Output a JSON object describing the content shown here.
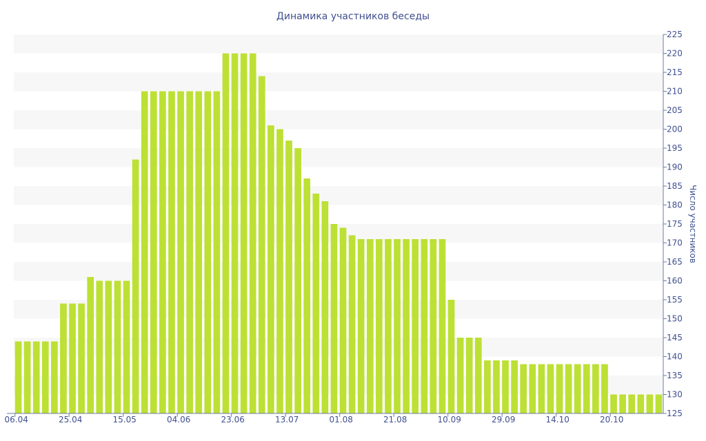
{
  "chart_data": {
    "type": "bar",
    "title": "Динамика участников беседы",
    "xlabel": "",
    "ylabel": "Число участников",
    "ylim": [
      125,
      225
    ],
    "ytick_step": 5,
    "y_axis_side": "right",
    "grid": "alternating horizontal bands",
    "legend": "none",
    "bar_color": "#bde034",
    "band_color": "#f7f7f7",
    "text_color": "#3f4f8f",
    "x_tick_labels": [
      "06.04",
      "25.04",
      "15.05",
      "04.06",
      "23.06",
      "13.07",
      "01.08",
      "21.08",
      "10.09",
      "29.09",
      "14.10",
      "20.10"
    ],
    "x_tick_bar_index": [
      0,
      6,
      12,
      18,
      24,
      30,
      36,
      42,
      48,
      54,
      60,
      66
    ],
    "values": [
      144,
      144,
      144,
      144,
      144,
      154,
      154,
      154,
      161,
      160,
      160,
      160,
      160,
      192,
      210,
      210,
      210,
      210,
      210,
      210,
      210,
      210,
      210,
      220,
      220,
      220,
      220,
      214,
      201,
      200,
      197,
      195,
      187,
      183,
      181,
      175,
      174,
      172,
      171,
      171,
      171,
      171,
      171,
      171,
      171,
      171,
      171,
      171,
      155,
      145,
      145,
      145,
      139,
      139,
      139,
      139,
      138,
      138,
      138,
      138,
      138,
      138,
      138,
      138,
      138,
      138,
      130,
      130,
      130,
      130,
      130,
      130
    ]
  }
}
